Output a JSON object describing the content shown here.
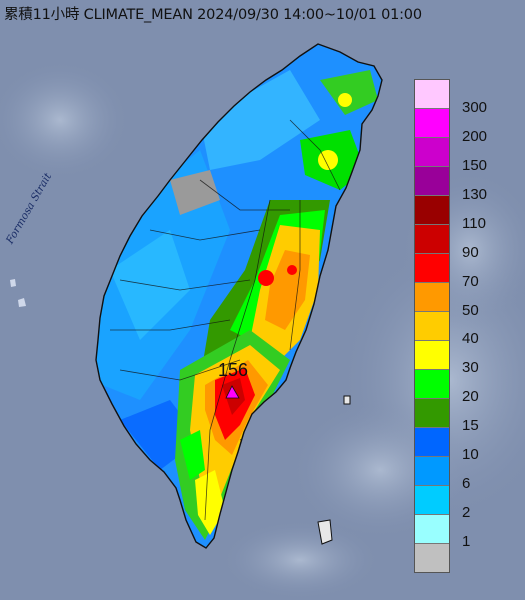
{
  "title": "累積11小時 CLIMATE_MEAN 2024/09/30 14:00~10/01 01:00",
  "strait_label": "Formosa Strait",
  "max_value_label": "156",
  "legend": {
    "unit_values": [
      "300",
      "200",
      "150",
      "130",
      "110",
      "90",
      "70",
      "50",
      "40",
      "30",
      "20",
      "15",
      "10",
      "6",
      "2",
      "1"
    ],
    "colors": [
      "#ffc8ff",
      "#ff00ff",
      "#cc00cc",
      "#990099",
      "#990000",
      "#cc0000",
      "#ff0000",
      "#ff9900",
      "#ffcc00",
      "#ffff00",
      "#00ff00",
      "#339900",
      "#0066ff",
      "#0099ff",
      "#00ccff",
      "#99ffff",
      "#c0c0c0"
    ]
  },
  "colors": {
    "sea": "#7f8fae",
    "land_low": "#8c9bb0",
    "marker": "#ff00ff"
  }
}
